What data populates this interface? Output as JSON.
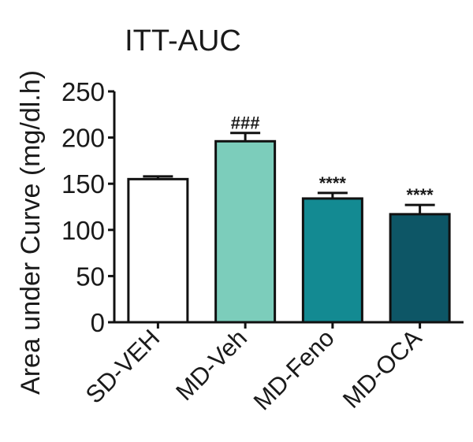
{
  "chart_data": {
    "type": "bar",
    "title": "ITT-AUC",
    "ylabel": "Area under Curve (mg/dl.h)",
    "xlabel": "",
    "ylim": [
      0,
      250
    ],
    "yticks": [
      0,
      50,
      100,
      150,
      200,
      250
    ],
    "categories": [
      "SD-VEH",
      "MD-Veh",
      "MD-Feno",
      "MD-OCA"
    ],
    "values": [
      155,
      196,
      134,
      117
    ],
    "errors": [
      3,
      9,
      6,
      10
    ],
    "significance": [
      "",
      "###",
      "****",
      "****"
    ],
    "colors": [
      "#ffffff",
      "#7ccdbb",
      "#138a92",
      "#0d5666"
    ],
    "grid": false,
    "legend": "none"
  }
}
